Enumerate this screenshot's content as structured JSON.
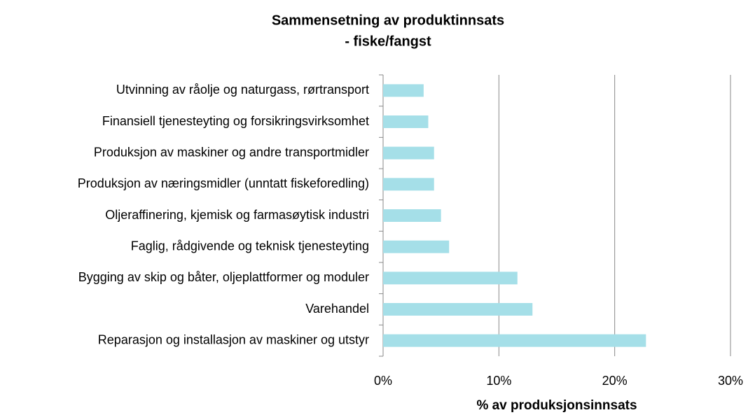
{
  "chart_data": {
    "type": "hbar",
    "title": [
      "Sammensetning av produktinnsats",
      "- fiske/fangst"
    ],
    "x_label": "% av produksjonsinnsats",
    "categories": [
      "Utvinning av råolje og naturgass, rørtransport",
      "Finansiell tjenesteyting og forsikringsvirksomhet",
      "Produksjon av maskiner og andre transportmidler",
      "Produksjon av næringsmidler (unntatt fiskeforedling)",
      "Oljeraffinering, kjemisk og farmasøytisk industri",
      "Faglig, rådgivende og teknisk tjenesteyting",
      "Bygging av skip og båter, oljeplattformer og moduler",
      "Varehandel",
      "Reparasjon og installasjon av maskiner og utstyr"
    ],
    "values": [
      3.5,
      3.9,
      4.4,
      4.4,
      5.0,
      5.7,
      11.6,
      12.9,
      22.7
    ],
    "color": "#a5dfe8",
    "xlim": [
      0,
      30
    ],
    "xticks": [
      {
        "value": 0,
        "label": "0%"
      },
      {
        "value": 10,
        "label": "10%"
      },
      {
        "value": 20,
        "label": "20%"
      },
      {
        "value": 30,
        "label": "30%"
      }
    ],
    "grid": true
  }
}
